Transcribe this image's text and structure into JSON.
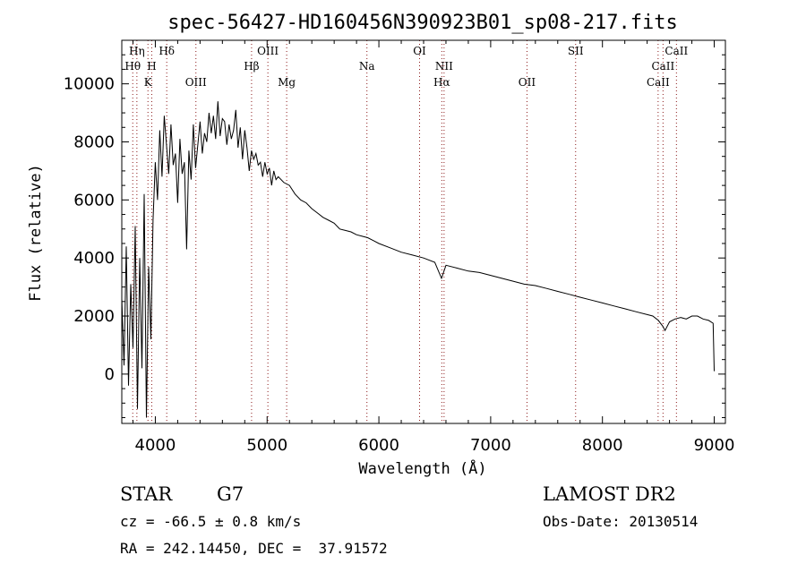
{
  "chart_data": {
    "type": "line",
    "title": "spec-56427-HD160456N390923B01_sp08-217.fits",
    "xlabel": "Wavelength (Å)",
    "ylabel": "Flux (relative)",
    "xlim": [
      3700,
      9100
    ],
    "ylim": [
      -1700,
      11500
    ],
    "x_ticks": [
      4000,
      5000,
      6000,
      7000,
      8000,
      9000
    ],
    "y_ticks": [
      0,
      2000,
      4000,
      6000,
      8000,
      10000
    ],
    "series": [
      {
        "x": [
          3700,
          3720,
          3740,
          3760,
          3780,
          3800,
          3820,
          3840,
          3860,
          3880,
          3900,
          3920,
          3940,
          3960,
          3980,
          4000,
          4020,
          4040,
          4060,
          4080,
          4100,
          4120,
          4140,
          4160,
          4180,
          4200,
          4220,
          4240,
          4260,
          4280,
          4300,
          4320,
          4340,
          4360,
          4380,
          4400,
          4420,
          4440,
          4460,
          4480,
          4500,
          4520,
          4540,
          4560,
          4580,
          4600,
          4620,
          4640,
          4660,
          4680,
          4700,
          4720,
          4740,
          4760,
          4780,
          4800,
          4820,
          4840,
          4860,
          4880,
          4900,
          4920,
          4940,
          4960,
          4980,
          5000,
          5020,
          5040,
          5060,
          5080,
          5100,
          5150,
          5200,
          5250,
          5300,
          5350,
          5400,
          5450,
          5500,
          5550,
          5600,
          5650,
          5700,
          5750,
          5800,
          5850,
          5900,
          5950,
          6000,
          6100,
          6200,
          6300,
          6400,
          6500,
          6560,
          6600,
          6700,
          6800,
          6900,
          7000,
          7100,
          7200,
          7300,
          7400,
          7500,
          7600,
          7700,
          7800,
          7900,
          8000,
          8100,
          8200,
          8300,
          8400,
          8450,
          8500,
          8540,
          8560,
          8600,
          8650,
          8700,
          8750,
          8800,
          8850,
          8900,
          8950,
          8990,
          9000
        ],
        "y": [
          2600,
          300,
          4400,
          -400,
          3100,
          900,
          5100,
          -1200,
          4000,
          200,
          6200,
          -1500,
          3700,
          1200,
          5300,
          7300,
          6000,
          8400,
          6800,
          8900,
          7900,
          6900,
          8600,
          7200,
          7600,
          5900,
          8100,
          6900,
          7300,
          4300,
          7700,
          6700,
          8600,
          7100,
          7900,
          8700,
          7600,
          8300,
          8000,
          9000,
          8300,
          8900,
          8100,
          9400,
          8200,
          8800,
          8700,
          7900,
          8600,
          8100,
          8400,
          9100,
          7800,
          8500,
          7400,
          8400,
          7800,
          7000,
          7700,
          7400,
          7600,
          7200,
          7300,
          6800,
          7300,
          6900,
          7100,
          6500,
          7000,
          6700,
          6800,
          6600,
          6500,
          6200,
          6000,
          5900,
          5700,
          5550,
          5400,
          5300,
          5200,
          5000,
          4950,
          4900,
          4800,
          4750,
          4700,
          4600,
          4500,
          4350,
          4200,
          4100,
          4000,
          3850,
          3300,
          3750,
          3650,
          3550,
          3500,
          3400,
          3300,
          3200,
          3100,
          3050,
          2950,
          2850,
          2750,
          2650,
          2550,
          2450,
          2350,
          2250,
          2150,
          2050,
          2000,
          1850,
          1650,
          1500,
          1800,
          1900,
          1950,
          1900,
          2000,
          2000,
          1900,
          1850,
          1750,
          100
        ]
      }
    ],
    "lines": [
      {
        "name": "Hη",
        "x": 3835,
        "row": 1
      },
      {
        "name": "Hθ",
        "x": 3798,
        "row": 2
      },
      {
        "name": "K",
        "x": 3934,
        "row": 3
      },
      {
        "name": "H",
        "x": 3968,
        "row": 2
      },
      {
        "name": "Hδ",
        "x": 4102,
        "row": 1
      },
      {
        "name": "OIII",
        "x": 4363,
        "row": 3
      },
      {
        "name": "Hβ",
        "x": 4861,
        "row": 2
      },
      {
        "name": "OIII",
        "x": 5007,
        "row": 1
      },
      {
        "name": "Mg",
        "x": 5175,
        "row": 3
      },
      {
        "name": "Na",
        "x": 5893,
        "row": 2
      },
      {
        "name": "OI",
        "x": 6364,
        "row": 1
      },
      {
        "name": "NII",
        "x": 6583,
        "row": 2
      },
      {
        "name": "Hα",
        "x": 6563,
        "row": 3
      },
      {
        "name": "OII",
        "x": 7325,
        "row": 3
      },
      {
        "name": "SII",
        "x": 7760,
        "row": 1
      },
      {
        "name": "CaII",
        "x": 8498,
        "row": 3
      },
      {
        "name": "CaII",
        "x": 8542,
        "row": 2
      },
      {
        "name": "CaII",
        "x": 8662,
        "row": 1
      }
    ],
    "colors": {
      "spectrum": "#000000",
      "line_markers": "#8b1a1a"
    }
  },
  "info": {
    "object_class": "STAR",
    "subclass": "G7",
    "survey": "LAMOST DR2",
    "redshift_text": "cz = -66.5 ± 0.8 km/s",
    "obs_date_text": "Obs-Date: 20130514",
    "coords_text": "RA = 242.14450, DEC =  37.91572"
  }
}
